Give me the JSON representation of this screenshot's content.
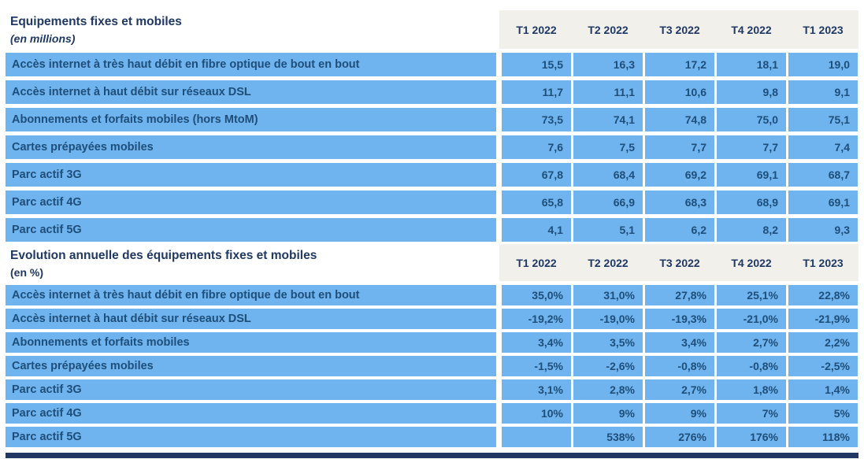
{
  "colors": {
    "row_blue": "#6FB4EE",
    "header_background": "#F1F0EA",
    "title_navy": "#1F3864",
    "cell_text_blue": "#1E4E79",
    "bottom_border_navy": "#1F3864"
  },
  "columns": [
    "T1 2022",
    "T2 2022",
    "T3 2022",
    "T4 2022",
    "T1 2023"
  ],
  "sections": [
    {
      "title": "Equipements fixes et mobiles",
      "subtitle": "(en millions)",
      "rows": [
        {
          "label": "Accès internet à très haut débit en fibre optique de bout en bout",
          "values": [
            "15,5",
            "16,3",
            "17,2",
            "18,1",
            "19,0"
          ]
        },
        {
          "label": "Accès internet à haut débit sur réseaux DSL",
          "values": [
            "11,7",
            "11,1",
            "10,6",
            "9,8",
            "9,1"
          ]
        },
        {
          "label": "Abonnements et forfaits mobiles (hors MtoM)",
          "values": [
            "73,5",
            "74,1",
            "74,8",
            "75,0",
            "75,1"
          ]
        },
        {
          "label": "Cartes prépayées mobiles",
          "values": [
            "7,6",
            "7,5",
            "7,7",
            "7,7",
            "7,4"
          ]
        },
        {
          "label": "Parc actif 3G",
          "values": [
            "67,8",
            "68,4",
            "69,2",
            "69,1",
            "68,7"
          ]
        },
        {
          "label": "Parc actif 4G",
          "values": [
            "65,8",
            "66,9",
            "68,3",
            "68,9",
            "69,1"
          ]
        },
        {
          "label": "Parc actif 5G",
          "values": [
            "4,1",
            "5,1",
            "6,2",
            "8,2",
            "9,3"
          ]
        }
      ]
    },
    {
      "title": "Evolution annuelle des équipements fixes et mobiles",
      "subtitle": "(en %)",
      "rows": [
        {
          "label": "Accès internet à très haut débit en fibre optique de bout en bout",
          "values": [
            "35,0%",
            "31,0%",
            "27,8%",
            "25,1%",
            "22,8%"
          ]
        },
        {
          "label": "Accès internet à haut débit sur réseaux DSL",
          "values": [
            "-19,2%",
            "-19,0%",
            "-19,3%",
            "-21,0%",
            "-21,9%"
          ]
        },
        {
          "label": "Abonnements et forfaits mobiles",
          "values": [
            "3,4%",
            "3,5%",
            "3,4%",
            "2,7%",
            "2,2%"
          ]
        },
        {
          "label": "Cartes prépayées mobiles",
          "values": [
            "-1,5%",
            "-2,6%",
            "-0,8%",
            "-0,8%",
            "-2,5%"
          ]
        },
        {
          "label": "Parc actif 3G",
          "values": [
            "3,1%",
            "2,8%",
            "2,7%",
            "1,8%",
            "1,4%"
          ]
        },
        {
          "label": "Parc actif 4G",
          "values": [
            "10%",
            "9%",
            "9%",
            "7%",
            "5%"
          ]
        },
        {
          "label": "Parc actif 5G",
          "values": [
            "",
            "538%",
            "276%",
            "176%",
            "118%"
          ]
        }
      ]
    }
  ],
  "chart_data": [
    {
      "type": "table",
      "title": "Equipements fixes et mobiles (en millions)",
      "categories": [
        "T1 2022",
        "T2 2022",
        "T3 2022",
        "T4 2022",
        "T1 2023"
      ],
      "series": [
        {
          "name": "Accès internet à très haut débit en fibre optique de bout en bout",
          "values": [
            15.5,
            16.3,
            17.2,
            18.1,
            19.0
          ]
        },
        {
          "name": "Accès internet à haut débit sur réseaux DSL",
          "values": [
            11.7,
            11.1,
            10.6,
            9.8,
            9.1
          ]
        },
        {
          "name": "Abonnements et forfaits mobiles (hors MtoM)",
          "values": [
            73.5,
            74.1,
            74.8,
            75.0,
            75.1
          ]
        },
        {
          "name": "Cartes prépayées mobiles",
          "values": [
            7.6,
            7.5,
            7.7,
            7.7,
            7.4
          ]
        },
        {
          "name": "Parc actif 3G",
          "values": [
            67.8,
            68.4,
            69.2,
            69.1,
            68.7
          ]
        },
        {
          "name": "Parc actif 4G",
          "values": [
            65.8,
            66.9,
            68.3,
            68.9,
            69.1
          ]
        },
        {
          "name": "Parc actif 5G",
          "values": [
            4.1,
            5.1,
            6.2,
            8.2,
            9.3
          ]
        }
      ]
    },
    {
      "type": "table",
      "title": "Evolution annuelle des équipements fixes et mobiles (en %)",
      "categories": [
        "T1 2022",
        "T2 2022",
        "T3 2022",
        "T4 2022",
        "T1 2023"
      ],
      "series": [
        {
          "name": "Accès internet à très haut débit en fibre optique de bout en bout",
          "values": [
            35.0,
            31.0,
            27.8,
            25.1,
            22.8
          ]
        },
        {
          "name": "Accès internet à haut débit sur réseaux DSL",
          "values": [
            -19.2,
            -19.0,
            -19.3,
            -21.0,
            -21.9
          ]
        },
        {
          "name": "Abonnements et forfaits mobiles",
          "values": [
            3.4,
            3.5,
            3.4,
            2.7,
            2.2
          ]
        },
        {
          "name": "Cartes prépayées mobiles",
          "values": [
            -1.5,
            -2.6,
            -0.8,
            -0.8,
            -2.5
          ]
        },
        {
          "name": "Parc actif 3G",
          "values": [
            3.1,
            2.8,
            2.7,
            1.8,
            1.4
          ]
        },
        {
          "name": "Parc actif 4G",
          "values": [
            10,
            9,
            9,
            7,
            5
          ]
        },
        {
          "name": "Parc actif 5G",
          "values": [
            null,
            538,
            276,
            176,
            118
          ]
        }
      ]
    }
  ]
}
